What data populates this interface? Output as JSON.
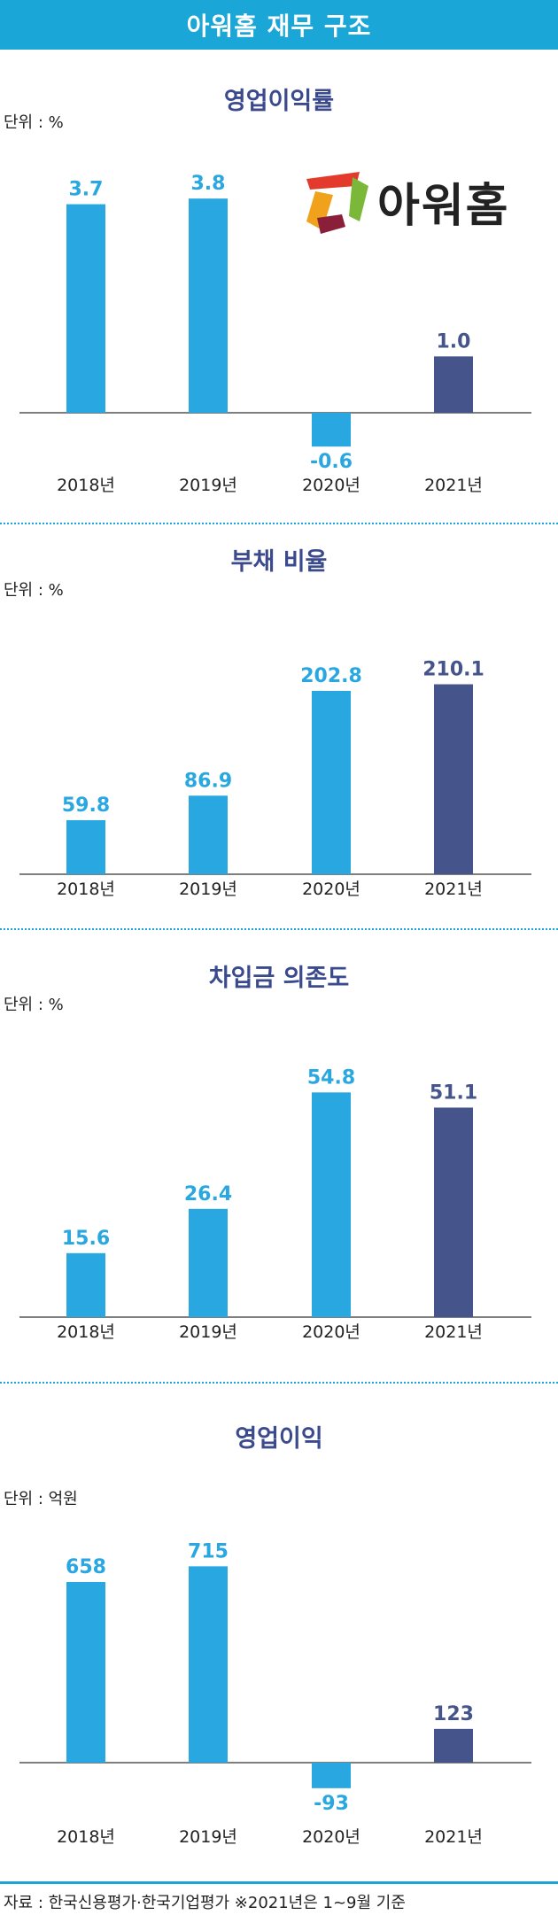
{
  "header": {
    "title": "아워홈 재무 구조"
  },
  "logo": {
    "text": "아워홈",
    "colors": [
      "#e33a2c",
      "#f0a21d",
      "#8a1f3a",
      "#7bb83a"
    ]
  },
  "colors": {
    "bar": "#29a7e1",
    "bar_highlight": "#45548a",
    "title": "#3a4a8c",
    "accent": "#1aa6d6"
  },
  "chart_data": [
    {
      "type": "bar",
      "title": "영업이익률",
      "unit": "단위 : %",
      "categories": [
        "2018년",
        "2019년",
        "2020년",
        "2021년"
      ],
      "values": [
        3.7,
        3.8,
        -0.6,
        1.0
      ],
      "labels": [
        "3.7",
        "3.8",
        "-0.6",
        "1.0"
      ],
      "ylim": [
        -0.8,
        4.4
      ]
    },
    {
      "type": "bar",
      "title": "부채 비율",
      "unit": "단위 : %",
      "categories": [
        "2018년",
        "2019년",
        "2020년",
        "2021년"
      ],
      "values": [
        59.8,
        86.9,
        202.8,
        210.1
      ],
      "labels": [
        "59.8",
        "86.9",
        "202.8",
        "210.1"
      ],
      "ylim": [
        0,
        240
      ]
    },
    {
      "type": "bar",
      "title": "차입금 의존도",
      "unit": "단위 : %",
      "categories": [
        "2018년",
        "2019년",
        "2020년",
        "2021년"
      ],
      "values": [
        15.6,
        26.4,
        54.8,
        51.1
      ],
      "labels": [
        "15.6",
        "26.4",
        "54.8",
        "51.1"
      ],
      "ylim": [
        0,
        62
      ]
    },
    {
      "type": "bar",
      "title": "영업이익",
      "unit": "단위 : 억원",
      "categories": [
        "2018년",
        "2019년",
        "2020년",
        "2021년"
      ],
      "values": [
        658,
        715,
        -93,
        123
      ],
      "labels": [
        "658",
        "715",
        "-93",
        "123"
      ],
      "ylim": [
        -110,
        800
      ]
    }
  ],
  "footer": {
    "source": "자료 : 한국신용평가·한국기업평가  ※2021년은 1~9월 기준"
  }
}
